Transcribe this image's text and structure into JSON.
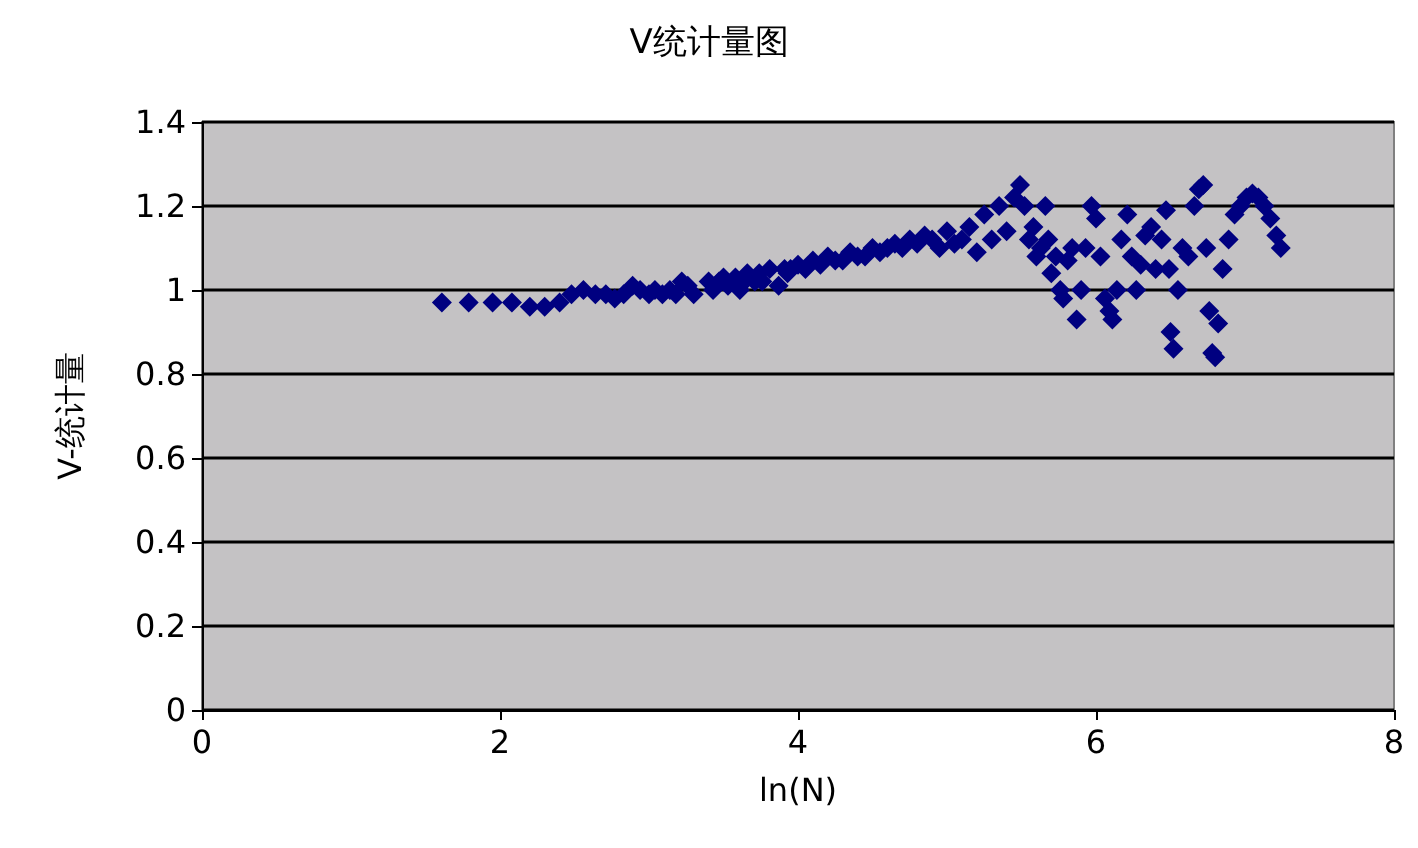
{
  "chart_data": {
    "type": "scatter",
    "title": "V统计量图",
    "xlabel": "ln(N)",
    "ylabel": "V-统计量",
    "xlim": [
      0,
      8
    ],
    "xticks": [
      0,
      2,
      4,
      6,
      8
    ],
    "ylim": [
      0,
      1.4
    ],
    "yticks": [
      0,
      0.2,
      0.4,
      0.6,
      0.8,
      1,
      1.2,
      1.4
    ],
    "grid": "y",
    "marker": "diamond",
    "series": [
      {
        "color": "#000080",
        "x": [
          1.61,
          1.79,
          1.95,
          2.08,
          2.2,
          2.3,
          2.4,
          2.48,
          2.56,
          2.64,
          2.71,
          2.77,
          2.83,
          2.89,
          2.94,
          3.0,
          3.04,
          3.09,
          3.14,
          3.18,
          3.22,
          3.26,
          3.3,
          3.4,
          3.43,
          3.47,
          3.5,
          3.53,
          3.58,
          3.61,
          3.64,
          3.66,
          3.71,
          3.74,
          3.76,
          3.81,
          3.87,
          3.91,
          3.93,
          3.95,
          4.0,
          4.05,
          4.1,
          4.15,
          4.2,
          4.25,
          4.3,
          4.35,
          4.4,
          4.45,
          4.5,
          4.55,
          4.6,
          4.65,
          4.7,
          4.75,
          4.8,
          4.85,
          4.9,
          4.95,
          5.0,
          5.05,
          5.1,
          5.15,
          5.2,
          5.25,
          5.3,
          5.35,
          5.4,
          5.45,
          5.49,
          5.52,
          5.55,
          5.58,
          5.6,
          5.63,
          5.66,
          5.68,
          5.7,
          5.73,
          5.76,
          5.78,
          5.81,
          5.84,
          5.87,
          5.9,
          5.93,
          5.97,
          6.0,
          6.03,
          6.06,
          6.09,
          6.11,
          6.14,
          6.17,
          6.21,
          6.24,
          6.27,
          6.3,
          6.33,
          6.37,
          6.4,
          6.44,
          6.47,
          6.49,
          6.5,
          6.52,
          6.55,
          6.58,
          6.62,
          6.66,
          6.69,
          6.72,
          6.74,
          6.76,
          6.78,
          6.8,
          6.82,
          6.85,
          6.89,
          6.93,
          6.97,
          7.01,
          7.05,
          7.09,
          7.13,
          7.17,
          7.21,
          7.24
        ],
        "values": [
          0.97,
          0.97,
          0.97,
          0.97,
          0.96,
          0.96,
          0.97,
          0.99,
          1.0,
          0.99,
          0.99,
          0.98,
          0.99,
          1.01,
          1.0,
          0.99,
          1.0,
          0.99,
          1.0,
          0.99,
          1.02,
          1.01,
          0.99,
          1.02,
          1.0,
          1.02,
          1.03,
          1.01,
          1.03,
          1.0,
          1.02,
          1.04,
          1.02,
          1.04,
          1.02,
          1.05,
          1.01,
          1.05,
          1.04,
          1.05,
          1.06,
          1.05,
          1.07,
          1.06,
          1.08,
          1.07,
          1.07,
          1.09,
          1.08,
          1.08,
          1.1,
          1.09,
          1.1,
          1.11,
          1.1,
          1.12,
          1.11,
          1.13,
          1.12,
          1.1,
          1.14,
          1.11,
          1.12,
          1.15,
          1.09,
          1.18,
          1.12,
          1.2,
          1.14,
          1.22,
          1.25,
          1.2,
          1.12,
          1.15,
          1.08,
          1.1,
          1.2,
          1.12,
          1.04,
          1.08,
          1.0,
          0.98,
          1.07,
          1.1,
          0.93,
          1.0,
          1.1,
          1.2,
          1.17,
          1.08,
          0.98,
          0.95,
          0.93,
          1.0,
          1.12,
          1.18,
          1.08,
          1.0,
          1.06,
          1.13,
          1.15,
          1.05,
          1.12,
          1.19,
          1.05,
          0.9,
          0.86,
          1.0,
          1.1,
          1.08,
          1.2,
          1.24,
          1.25,
          1.1,
          0.95,
          0.85,
          0.84,
          0.92,
          1.05,
          1.12,
          1.18,
          1.2,
          1.22,
          1.23,
          1.22,
          1.2,
          1.17,
          1.13,
          1.1
        ]
      }
    ]
  }
}
